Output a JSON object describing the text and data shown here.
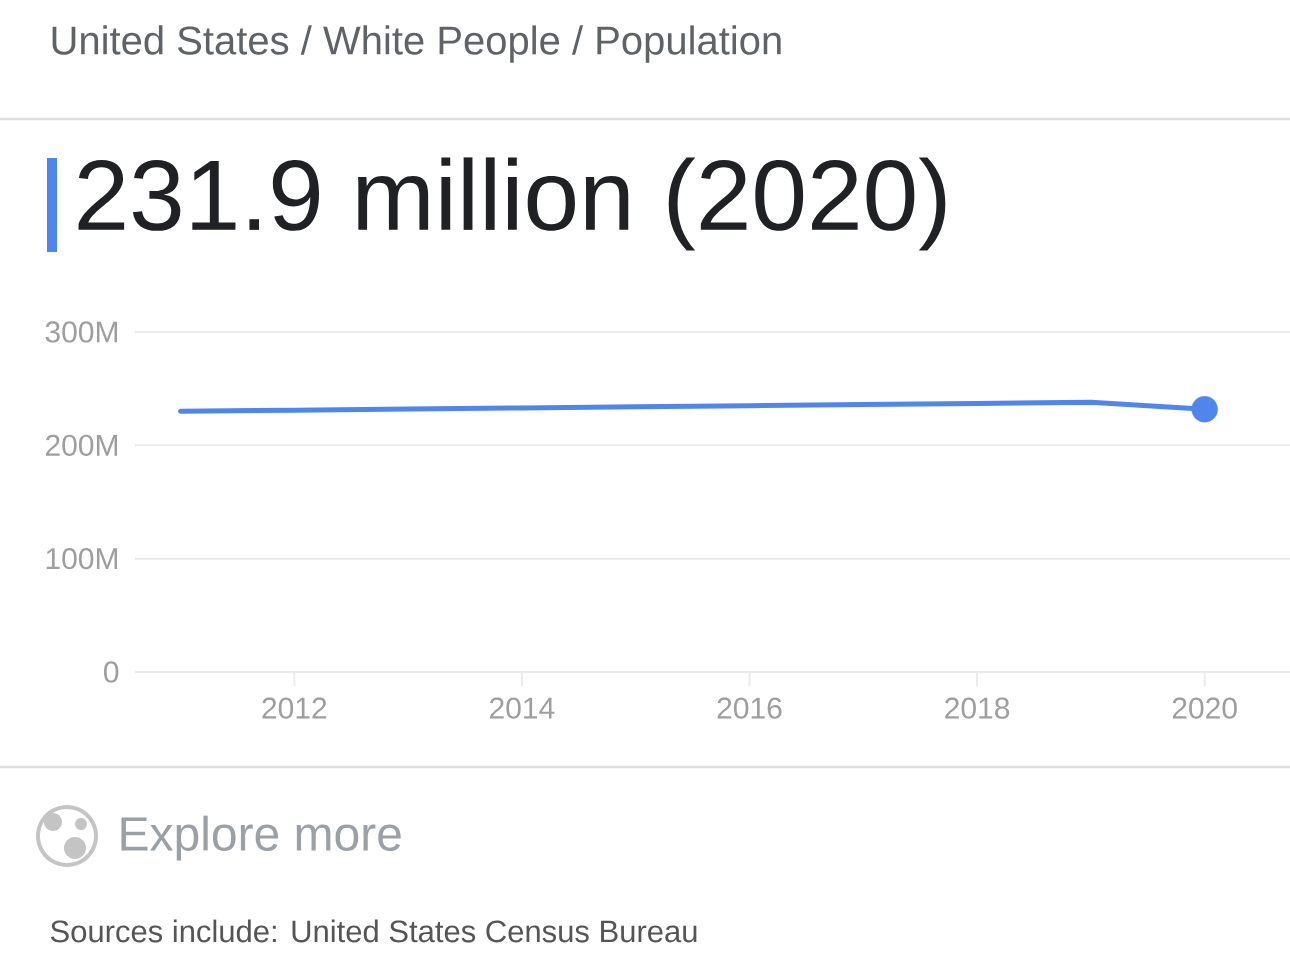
{
  "chart_data": {
    "type": "line",
    "title": "United States / White People / Population",
    "subtitle": "231.9 million (2020)",
    "x": [
      2011,
      2012,
      2013,
      2014,
      2015,
      2016,
      2017,
      2018,
      2019,
      2020
    ],
    "series": [
      {
        "color": "#5086ec",
        "values": [
          230,
          231,
          232,
          233,
          234,
          235,
          236,
          237,
          238,
          231.9
        ]
      },
      {
        "type": "scatter",
        "color": "#5086ec",
        "x": [
          2020
        ],
        "values": [
          231.9
        ]
      }
    ],
    "xlim": [
      2010.6,
      2020.75
    ],
    "ylim": [
      0,
      300
    ],
    "xticks": [
      2012,
      2014,
      2016,
      2018,
      2020
    ],
    "yticks": [
      0,
      {
        "value": 100,
        "label": "100M"
      },
      {
        "value": 200,
        "label": "200M"
      },
      {
        "value": 300,
        "label": "300M"
      }
    ],
    "grid": "y",
    "annotations": [
      "Explore more",
      "Sources include: United States Census Bureau"
    ]
  }
}
